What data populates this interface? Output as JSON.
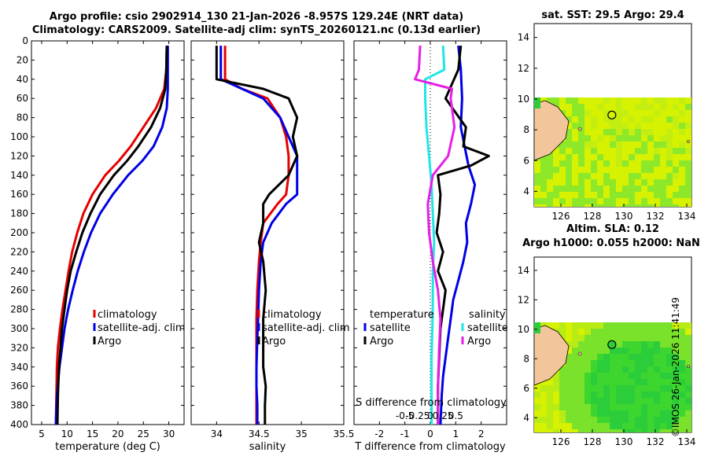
{
  "header": {
    "title_line1": "Argo profile: csio 2902914_130 21-Jan-2026 -8.957S 129.24E (NRT data)",
    "title_line2": "Climatology: CARS2009. Satellite-adj clim: synTS_20260121.nc (0.13d earlier)"
  },
  "footer": {
    "stamp": "©IMOS 26-Jan-2026 11:41:49"
  },
  "colors": {
    "climatology": "#e60000",
    "satellite": "#0000e6",
    "argo": "#000000",
    "sat_salinity": "#22e6e6",
    "argo_salinity": "#e61ee6",
    "land": "#f2c59a",
    "sea_high": "#d7f200",
    "sea_low": "#2ccd3a"
  },
  "chart_data": [
    {
      "type": "line",
      "name": "temperature-profile",
      "xlabel": "temperature (deg C)",
      "ylabel": "",
      "xlim": [
        3,
        33
      ],
      "ylim": [
        0,
        400
      ],
      "xticks": [
        5,
        10,
        15,
        20,
        25,
        30
      ],
      "yticks": [
        0,
        20,
        40,
        60,
        80,
        100,
        120,
        140,
        160,
        180,
        200,
        220,
        240,
        260,
        280,
        300,
        320,
        340,
        360,
        380,
        400
      ],
      "legend": [
        "climatology",
        "satellite-adj. clim",
        "Argo"
      ],
      "series": [
        {
          "name": "climatology",
          "color": "#e60000",
          "x": [
            29.6,
            29.5,
            29.1,
            27.5,
            25.0,
            22.5,
            20.2,
            17.5,
            15.0,
            13.2,
            12.0,
            11.0,
            10.3,
            9.7,
            9.1,
            8.6,
            8.2,
            8.0,
            7.9,
            7.8
          ],
          "y": [
            5,
            30,
            50,
            70,
            90,
            110,
            125,
            140,
            160,
            180,
            200,
            220,
            240,
            260,
            280,
            300,
            320,
            340,
            370,
            400
          ]
        },
        {
          "name": "satellite",
          "color": "#0000e6",
          "x": [
            29.8,
            29.8,
            29.8,
            29.6,
            28.7,
            27.0,
            24.8,
            22.0,
            19.0,
            16.5,
            14.7,
            13.3,
            12.1,
            11.1,
            10.2,
            9.5,
            9.0,
            8.5,
            8.0,
            7.8
          ],
          "y": [
            5,
            30,
            50,
            70,
            90,
            110,
            125,
            140,
            160,
            180,
            200,
            220,
            240,
            260,
            280,
            300,
            320,
            340,
            370,
            400
          ]
        },
        {
          "name": "Argo",
          "color": "#000000",
          "x": [
            29.6,
            29.5,
            29.3,
            28.3,
            26.5,
            24.0,
            21.8,
            19.2,
            16.5,
            14.6,
            13.0,
            11.8,
            10.7,
            10.0,
            9.5,
            9.0,
            8.7,
            8.4,
            8.2,
            8.1
          ],
          "y": [
            5,
            30,
            50,
            70,
            90,
            110,
            125,
            140,
            160,
            180,
            200,
            220,
            240,
            260,
            280,
            300,
            320,
            340,
            370,
            400
          ]
        }
      ]
    },
    {
      "type": "line",
      "name": "salinity-profile",
      "xlabel": "salinity",
      "xlim": [
        33.7,
        35.5
      ],
      "ylim": [
        0,
        400
      ],
      "xticks": [
        34,
        34.5,
        35,
        35.5
      ],
      "legend": [
        "climatology",
        "satellite-adj. clim",
        "Argo"
      ],
      "series": [
        {
          "name": "climatology",
          "color": "#e60000",
          "x": [
            34.1,
            34.1,
            34.1,
            34.3,
            34.6,
            34.75,
            34.82,
            34.85,
            34.85,
            34.82,
            34.72,
            34.55,
            34.52,
            34.5,
            34.48,
            34.47,
            34.47,
            34.47,
            34.47,
            34.47,
            34.47
          ],
          "y": [
            5,
            20,
            40,
            50,
            60,
            80,
            100,
            120,
            140,
            160,
            170,
            190,
            210,
            230,
            260,
            290,
            310,
            340,
            360,
            380,
            400
          ]
        },
        {
          "name": "satellite",
          "color": "#0000e6",
          "x": [
            34.05,
            34.05,
            34.05,
            34.3,
            34.55,
            34.75,
            34.85,
            34.95,
            34.95,
            34.95,
            34.82,
            34.65,
            34.55,
            34.52,
            34.5,
            34.49,
            34.48,
            34.47,
            34.47,
            34.48,
            34.48
          ],
          "y": [
            5,
            20,
            40,
            50,
            60,
            80,
            100,
            120,
            140,
            160,
            170,
            190,
            210,
            230,
            260,
            290,
            310,
            340,
            360,
            380,
            400
          ]
        },
        {
          "name": "Argo",
          "color": "#000000",
          "x": [
            34.0,
            34.0,
            34.0,
            34.55,
            34.85,
            34.95,
            34.9,
            34.95,
            34.85,
            34.62,
            34.55,
            34.55,
            34.5,
            34.55,
            34.58,
            34.55,
            34.55,
            34.55,
            34.58,
            34.57,
            34.57
          ],
          "y": [
            5,
            20,
            40,
            50,
            60,
            80,
            100,
            120,
            140,
            160,
            170,
            190,
            210,
            230,
            260,
            290,
            310,
            340,
            360,
            380,
            400
          ]
        }
      ]
    },
    {
      "type": "line",
      "name": "difference-from-climatology",
      "xlabel": "T difference from climatology",
      "xlabel2": "S difference from climatology",
      "xlim": [
        -3,
        3
      ],
      "ylim": [
        0,
        400
      ],
      "xticks": [
        -2,
        -1,
        0,
        1,
        2
      ],
      "s_ticks": [
        "-0.5",
        "-0.25",
        "0",
        "0.25",
        "0.5"
      ],
      "legend_temperature_title": "temperature",
      "legend_salinity_title": "salinity",
      "legend": [
        "satellite",
        "Argo",
        "satellite",
        "Argo"
      ],
      "series": [
        {
          "name": "temperature satellite",
          "color": "#0000e6",
          "x": [
            1.1,
            1.2,
            1.25,
            1.2,
            1.35,
            1.5,
            1.75,
            1.6,
            1.4,
            1.45,
            1.3,
            1.1,
            0.9,
            0.8,
            0.7,
            0.6,
            0.5,
            0.45,
            0.4
          ],
          "y": [
            5,
            30,
            60,
            90,
            110,
            130,
            150,
            170,
            190,
            210,
            230,
            250,
            270,
            290,
            310,
            330,
            350,
            370,
            400
          ]
        },
        {
          "name": "temperature Argo",
          "color": "#000000",
          "x": [
            1.2,
            1.1,
            0.6,
            1.4,
            1.3,
            2.3,
            1.6,
            0.3,
            0.4,
            0.35,
            0.25,
            0.5,
            0.3,
            0.6,
            0.5,
            0.4,
            0.35,
            0.3,
            0.3
          ],
          "y": [
            5,
            30,
            60,
            90,
            110,
            120,
            130,
            140,
            160,
            180,
            200,
            220,
            240,
            260,
            280,
            300,
            330,
            360,
            400
          ]
        },
        {
          "name": "salinity satellite",
          "color": "#22e6e6",
          "x": [
            0.5,
            0.55,
            -0.2,
            -0.2,
            -0.15,
            -0.05,
            0.05,
            0.1,
            0.15,
            0.1,
            0.1,
            0.08,
            0.05,
            0.05,
            0.05
          ],
          "y": [
            5,
            30,
            40,
            60,
            90,
            120,
            150,
            180,
            210,
            240,
            270,
            300,
            330,
            360,
            400
          ]
        },
        {
          "name": "salinity Argo",
          "color": "#e61ee6",
          "x": [
            -0.4,
            -0.45,
            -0.6,
            0.85,
            0.8,
            0.95,
            0.7,
            0.1,
            -0.1,
            -0.05,
            0.1,
            0.3,
            0.4,
            0.35,
            0.3,
            0.3
          ],
          "y": [
            5,
            30,
            40,
            50,
            60,
            90,
            120,
            140,
            170,
            200,
            230,
            260,
            290,
            320,
            360,
            400
          ]
        }
      ]
    }
  ],
  "maps": [
    {
      "name": "sst-map",
      "title": "sat. SST: 29.5 Argo: 29.4",
      "xticks": [
        "126",
        "128",
        "130",
        "132",
        "134"
      ],
      "yticks": [
        "4",
        "6",
        "8",
        "10",
        "12",
        "14"
      ]
    },
    {
      "name": "sla-map",
      "title_line1": "Altim. SLA: 0.12",
      "title_line2": "Argo h1000: 0.055 h2000: NaN",
      "xticks": [
        "126",
        "128",
        "130",
        "132",
        "134"
      ],
      "yticks": [
        "4",
        "6",
        "8",
        "10",
        "12",
        "14"
      ]
    }
  ]
}
